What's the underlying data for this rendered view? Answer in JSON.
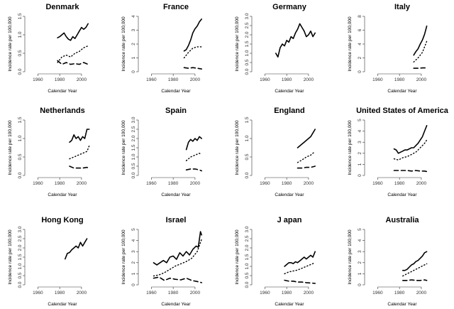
{
  "figure": {
    "xlabel": "Calendar Year",
    "ylabel": "Incidence rate per 100,000",
    "series_styles": {
      "total": "solid",
      "series2": "dotted",
      "series3": "dashed"
    }
  },
  "chart_data": [
    {
      "type": "line",
      "title": "Denmark",
      "xlim": [
        1950,
        2015
      ],
      "xticks": [
        1960,
        1980,
        2000
      ],
      "ylim": [
        0,
        1.5
      ],
      "yticks": [
        "0.0",
        "0.5",
        "1.0",
        "1.5"
      ],
      "series": [
        {
          "style": "solid",
          "x": [
            1978,
            1980,
            1982,
            1984,
            1986,
            1988,
            1990,
            1992,
            1994,
            1996,
            1998,
            2000,
            2002,
            2004,
            2006
          ],
          "y": [
            0.92,
            0.95,
            1.0,
            1.05,
            0.95,
            0.88,
            0.85,
            0.95,
            0.9,
            1.0,
            1.1,
            1.2,
            1.15,
            1.2,
            1.3
          ]
        },
        {
          "style": "dotted",
          "x": [
            1978,
            1982,
            1986,
            1990,
            1994,
            1998,
            2002,
            2006
          ],
          "y": [
            0.25,
            0.4,
            0.45,
            0.4,
            0.5,
            0.55,
            0.65,
            0.7
          ]
        },
        {
          "style": "dashed",
          "x": [
            1978,
            1982,
            1986,
            1990,
            1994,
            1998,
            2002,
            2006
          ],
          "y": [
            0.3,
            0.2,
            0.25,
            0.2,
            0.22,
            0.2,
            0.25,
            0.2
          ]
        }
      ]
    },
    {
      "type": "line",
      "title": "France",
      "xlim": [
        1950,
        2015
      ],
      "xticks": [
        1960,
        1980,
        2000
      ],
      "ylim": [
        0,
        4
      ],
      "yticks": [
        "0",
        "1",
        "2",
        "3",
        "4"
      ],
      "series": [
        {
          "style": "solid",
          "x": [
            1990,
            1992,
            1994,
            1996,
            1998,
            2000,
            2002,
            2004,
            2006
          ],
          "y": [
            1.5,
            1.6,
            1.9,
            2.3,
            2.8,
            3.1,
            3.3,
            3.6,
            3.8
          ]
        },
        {
          "style": "dotted",
          "x": [
            1990,
            1994,
            1998,
            2002,
            2006
          ],
          "y": [
            1.0,
            1.4,
            1.7,
            1.8,
            1.8
          ]
        },
        {
          "style": "dashed",
          "x": [
            1990,
            1994,
            1998,
            2002,
            2006
          ],
          "y": [
            0.3,
            0.25,
            0.3,
            0.25,
            0.2
          ]
        }
      ]
    },
    {
      "type": "line",
      "title": "Germany",
      "xlim": [
        1950,
        2015
      ],
      "xticks": [
        1960,
        1980,
        2000
      ],
      "ylim": [
        0,
        3
      ],
      "yticks": [
        "0.0",
        "0.5",
        "1.0",
        "1.5",
        "2.0",
        "2.5",
        "3.0"
      ],
      "series": [
        {
          "style": "solid",
          "x": [
            1970,
            1972,
            1974,
            1976,
            1978,
            1980,
            1982,
            1984,
            1986,
            1988,
            1990,
            1992,
            1994,
            1996,
            1998,
            2000,
            2002,
            2004,
            2006
          ],
          "y": [
            1.0,
            0.8,
            1.3,
            1.5,
            1.4,
            1.7,
            1.6,
            1.9,
            1.8,
            2.1,
            2.3,
            2.6,
            2.4,
            2.2,
            1.9,
            2.0,
            2.2,
            1.9,
            2.1
          ]
        }
      ]
    },
    {
      "type": "line",
      "title": "Italy",
      "xlim": [
        1950,
        2015
      ],
      "xticks": [
        1960,
        1980,
        2000
      ],
      "ylim": [
        0,
        8
      ],
      "yticks": [
        "0",
        "2",
        "4",
        "6",
        "8"
      ],
      "series": [
        {
          "style": "solid",
          "x": [
            1993,
            1995,
            1997,
            1999,
            2001,
            2003,
            2005
          ],
          "y": [
            2.4,
            2.9,
            3.3,
            4.0,
            4.6,
            5.4,
            6.6
          ]
        },
        {
          "style": "dotted",
          "x": [
            1993,
            1997,
            2001,
            2005
          ],
          "y": [
            1.4,
            2.0,
            2.8,
            4.4
          ]
        },
        {
          "style": "dashed",
          "x": [
            1993,
            1997,
            2001,
            2005
          ],
          "y": [
            0.5,
            0.5,
            0.55,
            0.55
          ]
        }
      ]
    },
    {
      "type": "line",
      "title": "Netherlands",
      "xlim": [
        1950,
        2015
      ],
      "xticks": [
        1960,
        1980,
        2000
      ],
      "ylim": [
        0,
        1.5
      ],
      "yticks": [
        "0.0",
        "0.5",
        "1.0",
        "1.5"
      ],
      "series": [
        {
          "style": "solid",
          "x": [
            1989,
            1991,
            1993,
            1995,
            1997,
            1999,
            2001,
            2003,
            2005,
            2007
          ],
          "y": [
            0.9,
            0.95,
            1.1,
            1.0,
            1.05,
            0.95,
            1.05,
            1.0,
            1.25,
            1.25
          ]
        },
        {
          "style": "dotted",
          "x": [
            1989,
            1993,
            1997,
            2001,
            2005,
            2007
          ],
          "y": [
            0.45,
            0.5,
            0.55,
            0.6,
            0.65,
            0.8
          ]
        },
        {
          "style": "dashed",
          "x": [
            1989,
            1993,
            1997,
            2001,
            2005,
            2007
          ],
          "y": [
            0.25,
            0.2,
            0.2,
            0.2,
            0.22,
            0.2
          ]
        }
      ]
    },
    {
      "type": "line",
      "title": "Spain",
      "xlim": [
        1950,
        2015
      ],
      "xticks": [
        1960,
        1980,
        2000
      ],
      "ylim": [
        0,
        3
      ],
      "yticks": [
        "0.0",
        "0.5",
        "1.0",
        "1.5",
        "2.0",
        "2.5",
        "3.0"
      ],
      "series": [
        {
          "style": "solid",
          "x": [
            1992,
            1994,
            1996,
            1998,
            2000,
            2002,
            2004,
            2006
          ],
          "y": [
            1.4,
            1.8,
            1.95,
            1.85,
            2.0,
            1.9,
            2.1,
            2.0
          ]
        },
        {
          "style": "dotted",
          "x": [
            1992,
            1996,
            2000,
            2004,
            2006
          ],
          "y": [
            0.8,
            1.0,
            1.1,
            1.2,
            1.15
          ]
        },
        {
          "style": "dashed",
          "x": [
            1992,
            1996,
            2000,
            2004,
            2006
          ],
          "y": [
            0.3,
            0.35,
            0.35,
            0.3,
            0.25
          ]
        }
      ]
    },
    {
      "type": "line",
      "title": "England",
      "xlim": [
        1950,
        2015
      ],
      "xticks": [
        1960,
        1980,
        2000
      ],
      "ylim": [
        0,
        1.5
      ],
      "yticks": [
        "0.0",
        "0.5",
        "1.0",
        "1.5"
      ],
      "series": [
        {
          "style": "solid",
          "x": [
            1990,
            1992,
            1994,
            1996,
            1998,
            2000,
            2002,
            2004,
            2006
          ],
          "y": [
            0.75,
            0.8,
            0.85,
            0.9,
            0.95,
            1.0,
            1.05,
            1.15,
            1.25
          ]
        },
        {
          "style": "dotted",
          "x": [
            1990,
            1994,
            1998,
            2002,
            2006
          ],
          "y": [
            0.35,
            0.42,
            0.5,
            0.55,
            0.65
          ]
        },
        {
          "style": "dashed",
          "x": [
            1990,
            1994,
            1998,
            2002,
            2006
          ],
          "y": [
            0.2,
            0.2,
            0.22,
            0.22,
            0.25
          ]
        }
      ]
    },
    {
      "type": "line",
      "title": "United States of America",
      "xlim": [
        1950,
        2015
      ],
      "xticks": [
        1960,
        1980,
        2000
      ],
      "ylim": [
        0,
        5
      ],
      "yticks": [
        "0",
        "1",
        "2",
        "3",
        "4",
        "5"
      ],
      "series": [
        {
          "style": "solid",
          "x": [
            1975,
            1977,
            1979,
            1981,
            1983,
            1985,
            1987,
            1989,
            1991,
            1993,
            1995,
            1997,
            1999,
            2001,
            2003,
            2005
          ],
          "y": [
            2.4,
            2.3,
            2.0,
            2.1,
            2.2,
            2.3,
            2.3,
            2.4,
            2.5,
            2.5,
            2.7,
            2.9,
            3.2,
            3.5,
            4.0,
            4.5
          ]
        },
        {
          "style": "dotted",
          "x": [
            1975,
            1979,
            1983,
            1987,
            1991,
            1995,
            1999,
            2003,
            2005
          ],
          "y": [
            1.5,
            1.4,
            1.6,
            1.7,
            1.9,
            2.1,
            2.5,
            2.9,
            3.2
          ]
        },
        {
          "style": "dashed",
          "x": [
            1975,
            1979,
            1983,
            1987,
            1991,
            1995,
            1999,
            2003,
            2005
          ],
          "y": [
            0.45,
            0.45,
            0.45,
            0.45,
            0.4,
            0.45,
            0.4,
            0.4,
            0.35
          ]
        }
      ]
    },
    {
      "type": "line",
      "title": "Hong Kong",
      "xlim": [
        1950,
        2015
      ],
      "xticks": [
        1960,
        1980,
        2000
      ],
      "ylim": [
        0,
        3
      ],
      "yticks": [
        "0.0",
        "0.5",
        "1.0",
        "1.5",
        "2.0",
        "2.5",
        "3.0"
      ],
      "series": [
        {
          "style": "solid",
          "x": [
            1985,
            1987,
            1989,
            1991,
            1993,
            1995,
            1997,
            1999,
            2001,
            2003,
            2005
          ],
          "y": [
            1.4,
            1.7,
            1.75,
            1.9,
            2.0,
            2.1,
            2.0,
            2.3,
            2.1,
            2.3,
            2.5
          ]
        }
      ]
    },
    {
      "type": "line",
      "title": "Israel",
      "xlim": [
        1950,
        2015
      ],
      "xticks": [
        1960,
        1980,
        2000
      ],
      "ylim": [
        0,
        5
      ],
      "yticks": [
        "0",
        "1",
        "2",
        "3",
        "4",
        "5"
      ],
      "series": [
        {
          "style": "solid",
          "x": [
            1962,
            1965,
            1968,
            1971,
            1974,
            1977,
            1980,
            1983,
            1986,
            1989,
            1992,
            1995,
            1998,
            2001,
            2003,
            2005,
            2006
          ],
          "y": [
            2.0,
            1.8,
            2.0,
            2.2,
            2.0,
            2.5,
            2.6,
            2.3,
            2.9,
            2.6,
            3.0,
            2.7,
            3.2,
            3.5,
            3.4,
            4.8,
            4.5
          ]
        },
        {
          "style": "dotted",
          "x": [
            1962,
            1967,
            1972,
            1977,
            1982,
            1987,
            1992,
            1997,
            2002,
            2006
          ],
          "y": [
            0.8,
            0.9,
            1.1,
            1.4,
            1.7,
            1.9,
            2.1,
            2.4,
            3.0,
            4.1
          ]
        },
        {
          "style": "dashed",
          "x": [
            1962,
            1967,
            1972,
            1977,
            1982,
            1987,
            1992,
            1997,
            2002,
            2006
          ],
          "y": [
            0.6,
            0.7,
            0.4,
            0.6,
            0.5,
            0.45,
            0.6,
            0.4,
            0.3,
            0.2
          ]
        }
      ]
    },
    {
      "type": "line",
      "title": "J apan",
      "xlim": [
        1950,
        2015
      ],
      "xticks": [
        1960,
        1980,
        2000
      ],
      "ylim": [
        0,
        3
      ],
      "yticks": [
        "0.0",
        "0.5",
        "1.0",
        "1.5",
        "2.0",
        "2.5",
        "3.0"
      ],
      "series": [
        {
          "style": "solid",
          "x": [
            1978,
            1980,
            1982,
            1984,
            1986,
            1988,
            1990,
            1992,
            1994,
            1996,
            1998,
            2000,
            2002,
            2004,
            2006
          ],
          "y": [
            1.0,
            1.1,
            1.2,
            1.2,
            1.15,
            1.25,
            1.2,
            1.3,
            1.4,
            1.5,
            1.4,
            1.5,
            1.6,
            1.5,
            1.8
          ]
        },
        {
          "style": "dotted",
          "x": [
            1978,
            1982,
            1986,
            1990,
            1994,
            1998,
            2002,
            2006
          ],
          "y": [
            0.6,
            0.7,
            0.75,
            0.8,
            0.9,
            1.0,
            1.1,
            1.2
          ]
        },
        {
          "style": "dashed",
          "x": [
            1978,
            1982,
            1986,
            1990,
            1994,
            1998,
            2002,
            2006
          ],
          "y": [
            0.25,
            0.2,
            0.2,
            0.15,
            0.15,
            0.12,
            0.1,
            0.08
          ]
        }
      ]
    },
    {
      "type": "line",
      "title": "Australia",
      "xlim": [
        1950,
        2015
      ],
      "xticks": [
        1960,
        1980,
        2000
      ],
      "ylim": [
        0,
        5
      ],
      "yticks": [
        "0",
        "1",
        "2",
        "3",
        "4",
        "5"
      ],
      "series": [
        {
          "style": "solid",
          "x": [
            1983,
            1985,
            1987,
            1989,
            1991,
            1993,
            1995,
            1997,
            1999,
            2001,
            2003,
            2005
          ],
          "y": [
            1.3,
            1.3,
            1.4,
            1.6,
            1.8,
            1.9,
            2.1,
            2.2,
            2.4,
            2.6,
            2.9,
            3.0
          ]
        },
        {
          "style": "dotted",
          "x": [
            1983,
            1987,
            1991,
            1995,
            1999,
            2003,
            2005
          ],
          "y": [
            0.8,
            1.0,
            1.2,
            1.4,
            1.6,
            1.8,
            1.9
          ]
        },
        {
          "style": "dashed",
          "x": [
            1983,
            1987,
            1991,
            1995,
            1999,
            2003,
            2005
          ],
          "y": [
            0.4,
            0.4,
            0.45,
            0.4,
            0.4,
            0.45,
            0.4
          ]
        }
      ]
    }
  ]
}
